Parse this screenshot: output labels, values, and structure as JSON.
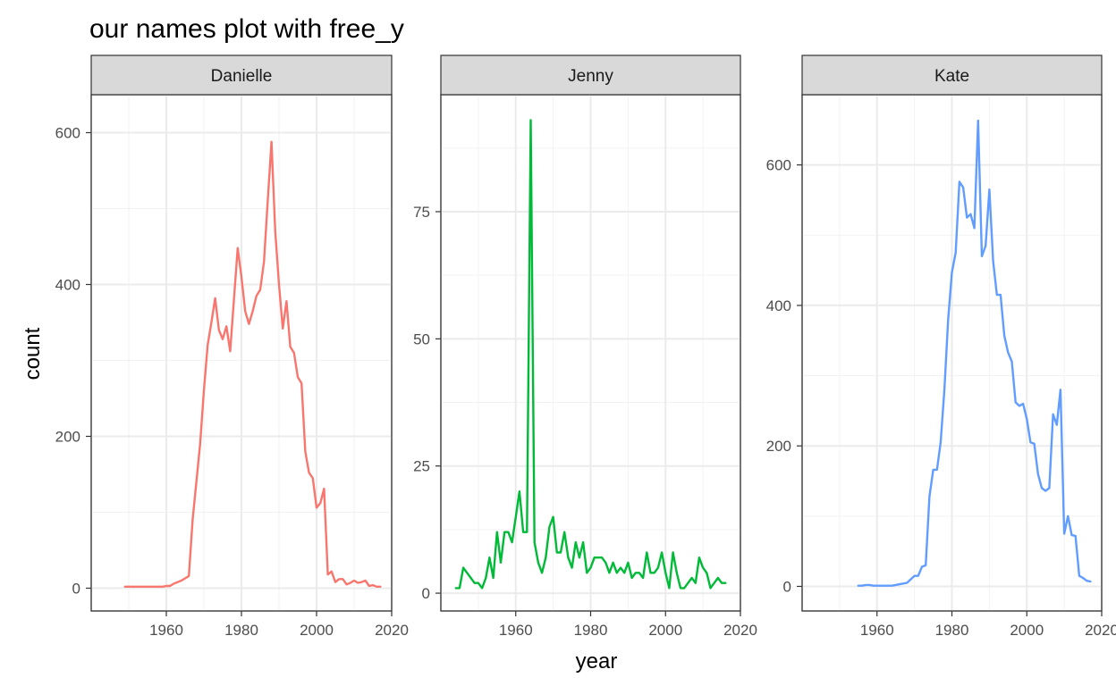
{
  "title": "our names plot with free_y",
  "xlabel": "year",
  "ylabel": "count",
  "chart_data": {
    "type": "line",
    "grid": true,
    "legend": "none",
    "panels": [
      {
        "name": "Danielle",
        "color": "#F8766D",
        "xlim": [
          1940,
          2020
        ],
        "ylim": [
          -30,
          650
        ],
        "xticks": [
          1960,
          1980,
          2000,
          2020
        ],
        "yticks": [
          0,
          200,
          400,
          600
        ],
        "x": [
          1949,
          1950,
          1951,
          1952,
          1953,
          1954,
          1955,
          1956,
          1957,
          1958,
          1959,
          1960,
          1961,
          1962,
          1963,
          1964,
          1965,
          1966,
          1967,
          1968,
          1969,
          1970,
          1971,
          1972,
          1973,
          1974,
          1975,
          1976,
          1977,
          1978,
          1979,
          1980,
          1981,
          1982,
          1983,
          1984,
          1985,
          1986,
          1987,
          1988,
          1989,
          1990,
          1991,
          1992,
          1993,
          1994,
          1995,
          1996,
          1997,
          1998,
          1999,
          2000,
          2001,
          2002,
          2003,
          2004,
          2005,
          2006,
          2007,
          2008,
          2009,
          2010,
          2011,
          2012,
          2013,
          2014,
          2015,
          2016,
          2017
        ],
        "y": [
          2,
          2,
          2,
          2,
          2,
          2,
          2,
          2,
          2,
          2,
          2,
          3,
          3,
          6,
          8,
          10,
          13,
          16,
          90,
          140,
          190,
          260,
          320,
          350,
          382,
          340,
          328,
          345,
          312,
          380,
          448,
          410,
          365,
          348,
          365,
          385,
          393,
          430,
          510,
          588,
          470,
          400,
          342,
          378,
          318,
          310,
          278,
          270,
          180,
          152,
          145,
          106,
          112,
          131,
          18,
          22,
          8,
          12,
          12,
          5,
          7,
          10,
          7,
          8,
          10,
          3,
          4,
          2,
          2
        ]
      },
      {
        "name": "Jenny",
        "color": "#00BA38",
        "xlim": [
          1940,
          2020
        ],
        "ylim": [
          -3.5,
          98
        ],
        "xticks": [
          1960,
          1980,
          2000,
          2020
        ],
        "yticks": [
          0,
          25,
          50,
          75
        ],
        "x": [
          1944,
          1945,
          1946,
          1947,
          1948,
          1949,
          1950,
          1951,
          1952,
          1953,
          1954,
          1955,
          1956,
          1957,
          1958,
          1959,
          1960,
          1961,
          1962,
          1963,
          1964,
          1965,
          1966,
          1967,
          1968,
          1969,
          1970,
          1971,
          1972,
          1973,
          1974,
          1975,
          1976,
          1977,
          1978,
          1979,
          1980,
          1981,
          1982,
          1983,
          1984,
          1985,
          1986,
          1987,
          1988,
          1989,
          1990,
          1991,
          1992,
          1993,
          1994,
          1995,
          1996,
          1997,
          1998,
          1999,
          2000,
          2001,
          2002,
          2003,
          2004,
          2005,
          2006,
          2007,
          2008,
          2009,
          2010,
          2011,
          2012,
          2013,
          2014,
          2015,
          2016
        ],
        "y": [
          1,
          1,
          5,
          4,
          3,
          2,
          2,
          1,
          3,
          7,
          3,
          12,
          6,
          12,
          12,
          10,
          15,
          20,
          12,
          12,
          93,
          10,
          6,
          4,
          7,
          13,
          15,
          8,
          8,
          12,
          7,
          5,
          10,
          7,
          10,
          4,
          5,
          7,
          7,
          7,
          6,
          4,
          6,
          4,
          5,
          4,
          6,
          3,
          4,
          4,
          3,
          8,
          4,
          4,
          5,
          8,
          4,
          1,
          8,
          4,
          1,
          1,
          2,
          3,
          2,
          7,
          5,
          4,
          1,
          2,
          3,
          2,
          2
        ]
      },
      {
        "name": "Kate",
        "color": "#619CFF",
        "xlim": [
          1940,
          2020
        ],
        "ylim": [
          -35,
          700
        ],
        "xticks": [
          1960,
          1980,
          2000,
          2020
        ],
        "yticks": [
          0,
          200,
          400,
          600
        ],
        "x": [
          1955,
          1956,
          1957,
          1958,
          1959,
          1960,
          1961,
          1962,
          1963,
          1964,
          1965,
          1966,
          1967,
          1968,
          1969,
          1970,
          1971,
          1972,
          1973,
          1974,
          1975,
          1976,
          1977,
          1978,
          1979,
          1980,
          1981,
          1982,
          1983,
          1984,
          1985,
          1986,
          1987,
          1988,
          1989,
          1990,
          1991,
          1992,
          1993,
          1994,
          1995,
          1996,
          1997,
          1998,
          1999,
          2000,
          2001,
          2002,
          2003,
          2004,
          2005,
          2006,
          2007,
          2008,
          2009,
          2010,
          2011,
          2012,
          2013,
          2014,
          2015,
          2016,
          2017
        ],
        "y": [
          1,
          1,
          2,
          2,
          1,
          1,
          1,
          1,
          1,
          1,
          2,
          3,
          4,
          5,
          10,
          15,
          15,
          28,
          30,
          128,
          166,
          166,
          205,
          280,
          380,
          447,
          475,
          576,
          568,
          525,
          530,
          510,
          663,
          470,
          485,
          565,
          463,
          415,
          415,
          357,
          333,
          320,
          262,
          257,
          260,
          238,
          205,
          203,
          160,
          140,
          136,
          140,
          245,
          230,
          280,
          75,
          100,
          73,
          72,
          15,
          12,
          8,
          7
        ]
      }
    ]
  }
}
